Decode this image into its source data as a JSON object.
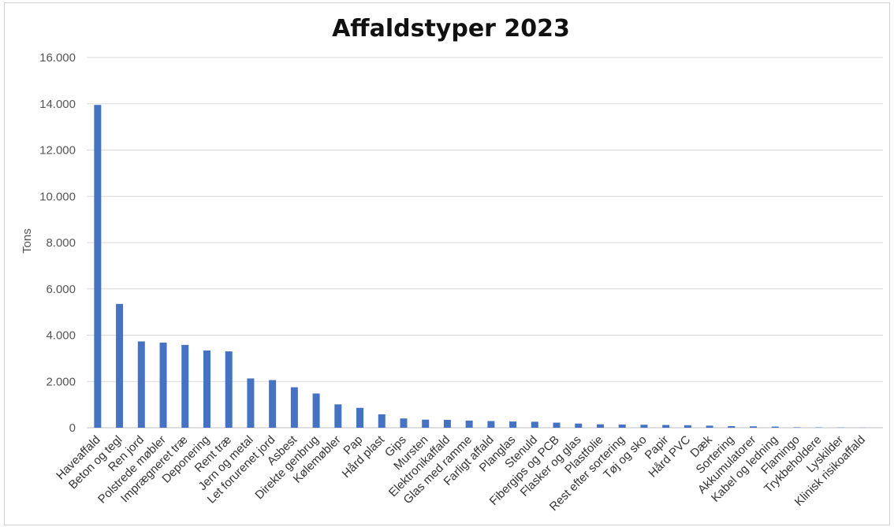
{
  "chart_data": {
    "type": "bar",
    "title": "Affaldstyper 2023",
    "ylabel": "Tons",
    "xlabel": "",
    "ylim": [
      0,
      16000
    ],
    "yticks": [
      0,
      2000,
      4000,
      6000,
      8000,
      10000,
      12000,
      14000,
      16000
    ],
    "ytick_labels": [
      "0",
      "2.000",
      "4.000",
      "6.000",
      "8.000",
      "10.000",
      "12.000",
      "14.000",
      "16.000"
    ],
    "grid": true,
    "bar_color": "#4472c4",
    "categories": [
      "Haveaffald",
      "Beton og tegl",
      "Ren jord",
      "Polstrede møbler",
      "Imprægneret træ",
      "Deponering",
      "Rent træ",
      "Jern og metal",
      "Let forurenet jord",
      "Asbest",
      "Direkte genbrug",
      "Kølemøbler",
      "Pap",
      "Hård plast",
      "Gips",
      "Mursten",
      "Elektronikaffald",
      "Glas med ramme",
      "Farligt affald",
      "Planglas",
      "Stenuld",
      "Fibergips og PCB",
      "Flasker og glas",
      "Plastfolie",
      "Rest efter sortering",
      "Tøj og sko",
      "Papir",
      "Hård PVC",
      "Dæk",
      "Sortering",
      "Akkumulatorer",
      "Kabel og ledning",
      "Flamingo",
      "Trykbeholdere",
      "Lyskilder",
      "Klinisk risikoaffald"
    ],
    "values": [
      13950,
      5350,
      3730,
      3680,
      3580,
      3340,
      3300,
      2130,
      2060,
      1750,
      1480,
      1010,
      860,
      580,
      400,
      350,
      340,
      310,
      290,
      270,
      260,
      220,
      180,
      150,
      140,
      130,
      120,
      110,
      90,
      70,
      60,
      50,
      20,
      15,
      10,
      5
    ]
  }
}
